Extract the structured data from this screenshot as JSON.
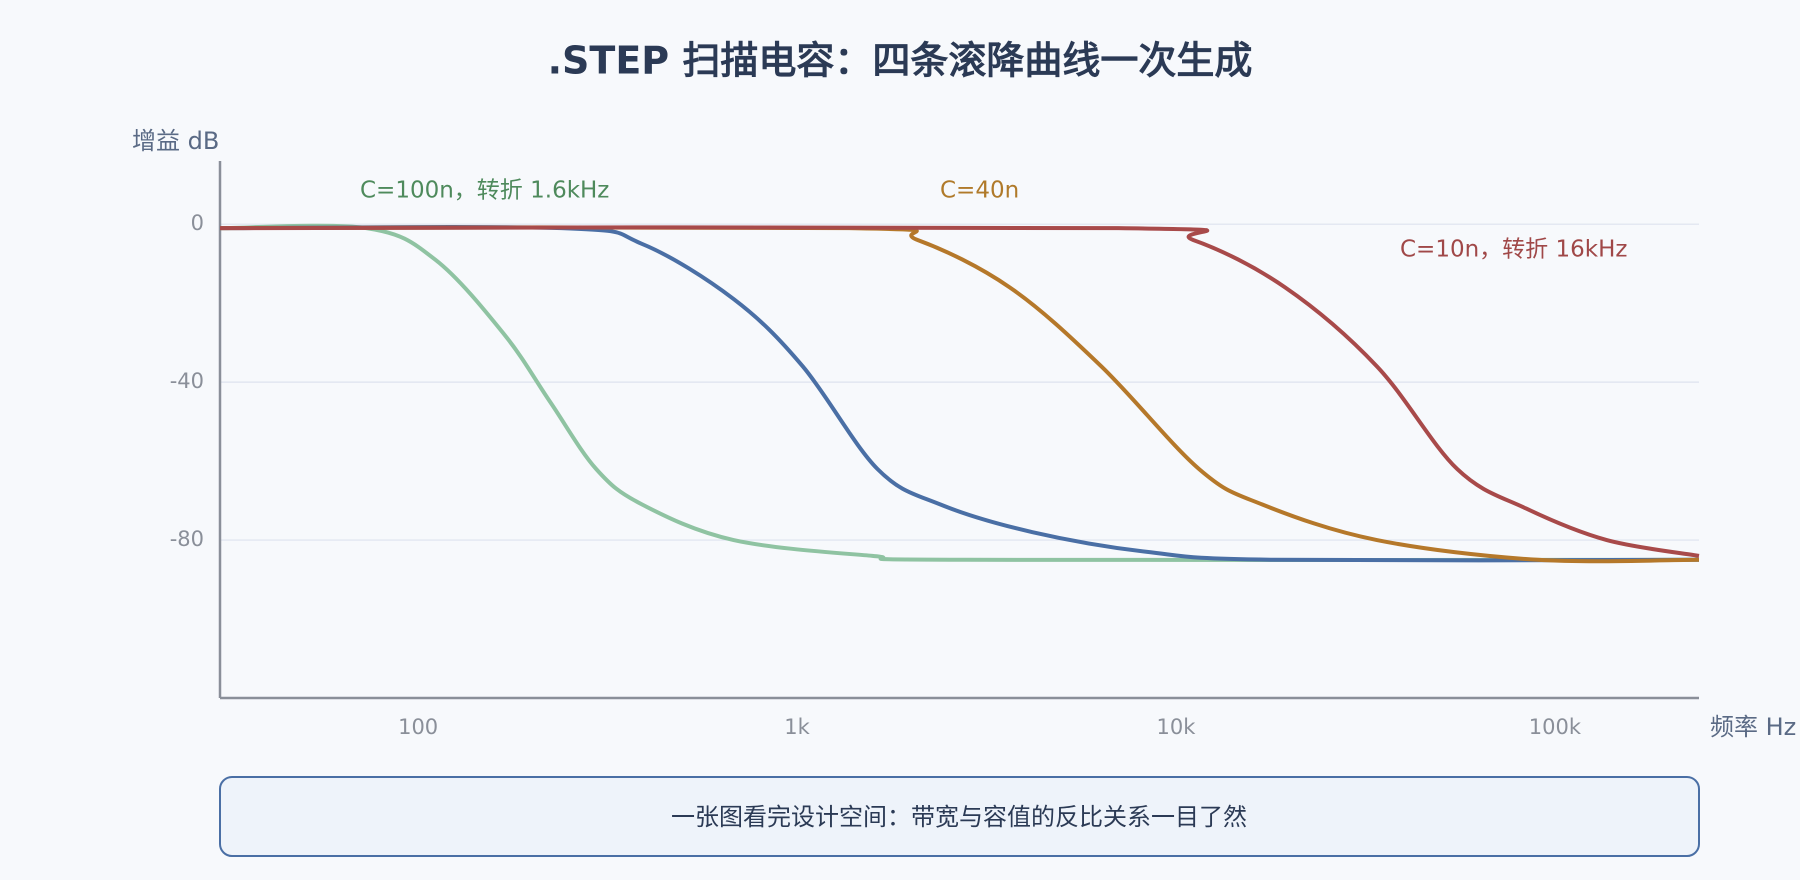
{
  "chart_data": {
    "type": "line",
    "title": ".STEP 扫描电容：四条滚降曲线一次生成",
    "ylabel": "增益 dB",
    "xlabel": "频率 Hz",
    "xscale": "log",
    "xlim": [
      30,
      240000
    ],
    "ylim": [
      -120,
      16
    ],
    "xticks": [
      100,
      {
        "value": 1000,
        "label": "1k"
      },
      {
        "value": 10000,
        "label": "10k"
      },
      {
        "value": 100000,
        "label": "100k"
      }
    ],
    "yticks": [
      0,
      -40,
      -80
    ],
    "grid": true,
    "series": [
      {
        "color": "#8fc3a2",
        "x": [
          30,
          73,
          111,
          169,
          223,
          295,
          390,
          680,
          1580,
          2750,
          240000
        ],
        "values": [
          -1,
          -1,
          -9,
          -28,
          -45,
          -62,
          -71,
          -80,
          -84,
          -85,
          -85
        ]
      },
      {
        "color": "#4a6fa5",
        "x": [
          30,
          239,
          390,
          681,
          1035,
          1630,
          2390,
          4180,
          8400,
          18100,
          240000
        ],
        "values": [
          -1,
          -1,
          -5,
          -19,
          -36,
          -62,
          -71,
          -78,
          -83,
          -85,
          -85
        ]
      },
      {
        "color": "#b5782a",
        "x": [
          30,
          1370,
          2080,
          3640,
          6350,
          11500,
          16900,
          33900,
          90100,
          240000
        ],
        "values": [
          -1,
          -1,
          -4,
          -16,
          -36,
          -62,
          -71,
          -80,
          -85,
          -85
        ]
      },
      {
        "color": "#a84a4a",
        "x": [
          30,
          7050,
          11100,
          19400,
          33900,
          55200,
          83900,
          137000,
          240000
        ],
        "values": [
          -1,
          -1,
          -4,
          -16,
          -36,
          -62,
          -72,
          -80,
          -84
        ]
      }
    ],
    "annotations": [
      {
        "text": "C=100n，转折 1.6kHz",
        "color": "#4e8a5c"
      },
      {
        "text": "C=40n",
        "color": "#b07a2a"
      },
      {
        "text": "C=10n，转折 16kHz",
        "color": "#a04848"
      }
    ],
    "note": "一张图看完设计空间：带宽与容值的反比关系一目了然"
  }
}
